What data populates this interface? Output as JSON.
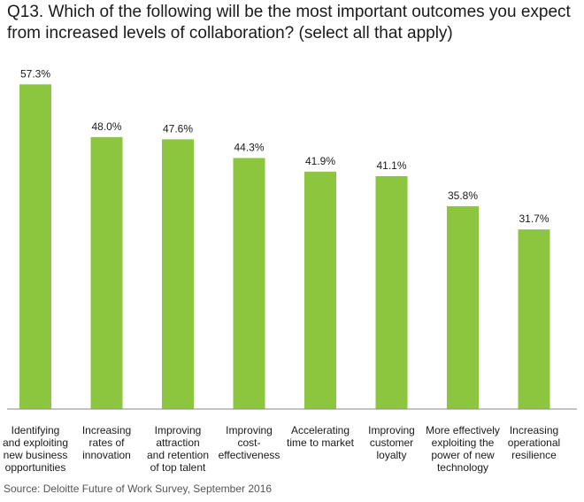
{
  "title": "Q13. Which of the following will be the most important outcomes you expect from increased levels of collaboration? (select all that apply)",
  "source": "Source: Deloitte Future of Work Survey, September 2016",
  "colors": {
    "bar": "#8cc63f",
    "axis": "#8a8a8a"
  },
  "chart_data": {
    "type": "bar",
    "title": "Q13. Which of the following will be the most important outcomes you expect from increased levels of collaboration? (select all that apply)",
    "xlabel": "",
    "ylabel": "",
    "ylim": [
      0,
      100
    ],
    "grid": false,
    "categories": [
      "Identifying and exploiting new business opportunities",
      "Increasing rates of innovation",
      "Improving attraction and retention of top talent",
      "Improving cost-effectiveness",
      "Accelerating time to market",
      "Improving customer loyalty",
      "More effectively exploiting the power of new technology",
      "Increasing operational resilience"
    ],
    "category_lines": [
      [
        "Identifying",
        "and exploiting",
        "new business",
        "opportunities"
      ],
      [
        "Increasing",
        "rates of",
        "innovation"
      ],
      [
        "Improving",
        "attraction",
        "and retention",
        "of top talent"
      ],
      [
        "Improving",
        "cost-",
        "effectiveness"
      ],
      [
        "Accelerating",
        "time to market"
      ],
      [
        "Improving",
        "customer",
        "loyalty"
      ],
      [
        "More effectively",
        "exploiting the",
        "power of new",
        "technology"
      ],
      [
        "Increasing",
        "operational",
        "resilience"
      ]
    ],
    "values": [
      57.3,
      48.0,
      47.6,
      44.3,
      41.9,
      41.1,
      35.8,
      31.7
    ],
    "value_labels": [
      "57.3%",
      "48.0%",
      "47.6%",
      "44.3%",
      "41.9%",
      "41.1%",
      "35.8%",
      "31.7%"
    ]
  }
}
